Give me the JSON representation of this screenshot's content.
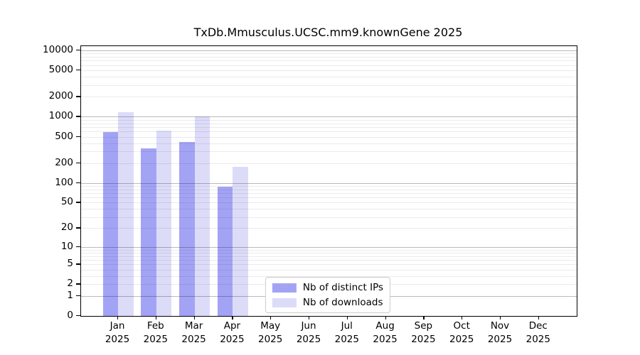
{
  "chart_data": {
    "type": "bar",
    "title": "TxDb.Mmusculus.UCSC.mm9.knownGene 2025",
    "x_tick_labels": [
      [
        "Jan",
        "2025"
      ],
      [
        "Feb",
        "2025"
      ],
      [
        "Mar",
        "2025"
      ],
      [
        "Apr",
        "2025"
      ],
      [
        "May",
        "2025"
      ],
      [
        "Jun",
        "2025"
      ],
      [
        "Jul",
        "2025"
      ],
      [
        "Aug",
        "2025"
      ],
      [
        "Sep",
        "2025"
      ],
      [
        "Oct",
        "2025"
      ],
      [
        "Nov",
        "2025"
      ],
      [
        "Dec",
        "2025"
      ]
    ],
    "series": [
      {
        "name": "Nb of distinct IPs",
        "color": "#a3a3f5",
        "values": [
          590,
          330,
          420,
          87,
          null,
          null,
          null,
          null,
          null,
          null,
          null,
          null
        ]
      },
      {
        "name": "Nb of downloads",
        "color": "#dcdcf9",
        "values": [
          1170,
          620,
          1010,
          175,
          null,
          null,
          null,
          null,
          null,
          null,
          null,
          null
        ]
      }
    ],
    "yscale": "log1p",
    "y_ticks": [
      10000,
      5000,
      2000,
      1000,
      500,
      200,
      100,
      50,
      20,
      10,
      5,
      2,
      1,
      0
    ],
    "y_major_gridlines": [
      1,
      10,
      100,
      1000,
      10000
    ],
    "ylim": [
      0,
      12000
    ],
    "grid": "horizontal",
    "legend_position": "lower center",
    "style": {
      "major_grid_color": "#bababa",
      "minor_grid_color": "#ebebeb",
      "spine_color": "#000000",
      "background": "#ffffff"
    }
  }
}
